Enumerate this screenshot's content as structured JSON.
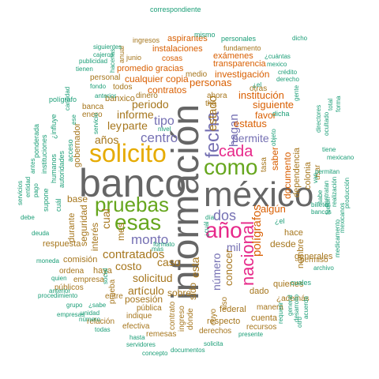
{
  "palette": {
    "teal": "#1b9e77",
    "orange": "#d95f02",
    "purple": "#7570b3",
    "magenta": "#e7298a",
    "green": "#66a61e",
    "gold": "#e6ab02",
    "brown": "#a6761d",
    "gray": "#666666"
  },
  "words": [
    {
      "text": "información",
      "color": "gray"
    },
    {
      "text": "banco",
      "color": "gray"
    },
    {
      "text": "méxico",
      "color": "gray"
    },
    {
      "text": "solicito",
      "color": "gold"
    },
    {
      "text": "pruebas",
      "color": "green"
    },
    {
      "text": "como",
      "color": "green"
    },
    {
      "text": "esas",
      "color": "green"
    },
    {
      "text": "año",
      "color": "magenta"
    },
    {
      "text": "cada",
      "color": "magenta"
    },
    {
      "text": "nacional",
      "color": "magenta"
    },
    {
      "text": "fecha",
      "color": "purple"
    },
    {
      "text": "dos",
      "color": "purple"
    },
    {
      "text": "monto",
      "color": "purple"
    },
    {
      "text": "centro",
      "color": "purple"
    },
    {
      "text": "tipo",
      "color": "purple"
    },
    {
      "text": "número",
      "color": "purple"
    },
    {
      "text": "permite",
      "color": "purple"
    },
    {
      "text": "hagan",
      "color": "purple"
    },
    {
      "text": "mil",
      "color": "purple"
    },
    {
      "text": "estado",
      "color": "brown"
    },
    {
      "text": "contratados",
      "color": "brown"
    },
    {
      "text": "solicitud",
      "color": "brown"
    },
    {
      "text": "periodo",
      "color": "brown"
    },
    {
      "text": "parte",
      "color": "brown"
    },
    {
      "text": "informe",
      "color": "brown"
    },
    {
      "text": "años",
      "color": "brown"
    },
    {
      "text": "ley",
      "color": "brown"
    },
    {
      "text": "cual",
      "color": "brown"
    },
    {
      "text": "caso",
      "color": "brown"
    },
    {
      "text": "costo",
      "color": "brown"
    },
    {
      "text": "artículo",
      "color": "brown"
    },
    {
      "text": "posesión",
      "color": "brown"
    },
    {
      "text": "sobre",
      "color": "brown"
    },
    {
      "text": "esta",
      "color": "brown"
    },
    {
      "text": "sido",
      "color": "brown"
    },
    {
      "text": "conocer",
      "color": "brown"
    },
    {
      "text": "desde",
      "color": "brown"
    },
    {
      "text": "algún",
      "color": "orange"
    },
    {
      "text": "polígrafos",
      "color": "orange"
    },
    {
      "text": "estatus",
      "color": "orange"
    },
    {
      "text": "documento",
      "color": "orange"
    },
    {
      "text": "saber",
      "color": "orange"
    },
    {
      "text": "favor",
      "color": "orange"
    },
    {
      "text": "siguiente",
      "color": "orange"
    },
    {
      "text": "institución",
      "color": "orange"
    },
    {
      "text": "personas",
      "color": "orange"
    },
    {
      "text": "investigación",
      "color": "orange"
    },
    {
      "text": "contratos",
      "color": "orange"
    },
    {
      "text": "cualquier copia",
      "color": "orange"
    },
    {
      "text": "promedio gracias",
      "color": "orange"
    },
    {
      "text": "instalaciones",
      "color": "orange"
    },
    {
      "text": "aspirantes",
      "color": "orange"
    },
    {
      "text": "transparencia",
      "color": "orange"
    },
    {
      "text": "exámenes",
      "color": "orange"
    },
    {
      "text": "cosas",
      "color": "orange"
    },
    {
      "text": "fundamento",
      "color": "brown"
    },
    {
      "text": "ingresos",
      "color": "brown"
    },
    {
      "text": "junio",
      "color": "brown"
    },
    {
      "text": "anual",
      "color": "brown"
    },
    {
      "text": "dinero",
      "color": "brown"
    },
    {
      "text": "banxico",
      "color": "brown"
    },
    {
      "text": "todos",
      "color": "brown"
    },
    {
      "text": "personal",
      "color": "brown"
    },
    {
      "text": "banca",
      "color": "brown"
    },
    {
      "text": "enero",
      "color": "brown"
    },
    {
      "text": "seguridad",
      "color": "brown"
    },
    {
      "text": "interés",
      "color": "brown"
    },
    {
      "text": "mes",
      "color": "brown"
    },
    {
      "text": "base",
      "color": "brown"
    },
    {
      "text": "durante",
      "color": "brown"
    },
    {
      "text": "haya",
      "color": "brown"
    },
    {
      "text": "comisión",
      "color": "brown"
    },
    {
      "text": "respuesta",
      "color": "brown"
    },
    {
      "text": "ordena",
      "color": "brown"
    },
    {
      "text": "públicos",
      "color": "brown"
    },
    {
      "text": "empresa",
      "color": "brown"
    },
    {
      "text": "entre",
      "color": "brown"
    },
    {
      "text": "relación",
      "color": "brown"
    },
    {
      "text": "indique",
      "color": "brown"
    },
    {
      "text": "pública",
      "color": "brown"
    },
    {
      "text": "remesas",
      "color": "brown"
    },
    {
      "text": "efectiva",
      "color": "brown"
    },
    {
      "text": "respecto",
      "color": "brown"
    },
    {
      "text": "derechos",
      "color": "brown"
    },
    {
      "text": "federal",
      "color": "brown"
    },
    {
      "text": "dado",
      "color": "brown"
    },
    {
      "text": "quienes",
      "color": "brown"
    },
    {
      "text": "manera",
      "color": "brown"
    },
    {
      "text": "cuenta",
      "color": "brown"
    },
    {
      "text": "recursos",
      "color": "brown"
    },
    {
      "text": "¿además",
      "color": "brown"
    },
    {
      "text": "nombre",
      "color": "brown"
    },
    {
      "text": "hace",
      "color": "brown"
    },
    {
      "text": "generales",
      "color": "brown"
    },
    {
      "text": "permiso",
      "color": "brown"
    },
    {
      "text": "gobernador",
      "color": "brown"
    },
    {
      "text": "ahora",
      "color": "brown"
    },
    {
      "text": "the",
      "color": "brown"
    },
    {
      "text": "otras",
      "color": "brown"
    },
    {
      "text": "dependencia",
      "color": "brown"
    },
    {
      "text": "colonia",
      "color": "brown"
    },
    {
      "text": "usar",
      "color": "brown"
    },
    {
      "text": "tasa",
      "color": "brown"
    },
    {
      "text": "medio",
      "color": "brown"
    },
    {
      "text": "contrato",
      "color": "brown"
    },
    {
      "text": "ingreso",
      "color": "brown"
    },
    {
      "text": "prueba",
      "color": "brown"
    },
    {
      "text": "dónde",
      "color": "brown"
    },
    {
      "text": "uso",
      "color": "brown"
    },
    {
      "text": "cuyo",
      "color": "brown"
    },
    {
      "text": "correspondiente",
      "color": "teal"
    },
    {
      "text": "mismo",
      "color": "teal"
    },
    {
      "text": "personales",
      "color": "teal"
    },
    {
      "text": "siguientes",
      "color": "teal"
    },
    {
      "text": "cajeros",
      "color": "teal"
    },
    {
      "text": "publicidad",
      "color": "teal"
    },
    {
      "text": "tienen",
      "color": "teal"
    },
    {
      "text": "hacerlas",
      "color": "teal"
    },
    {
      "text": "¿cuántas",
      "color": "teal"
    },
    {
      "text": "mexico",
      "color": "teal"
    },
    {
      "text": "crédito",
      "color": "teal"
    },
    {
      "text": "derecho",
      "color": "teal"
    },
    {
      "text": "gente",
      "color": "teal"
    },
    {
      "text": "polígrafo",
      "color": "teal"
    },
    {
      "text": "cantidad",
      "color": "teal"
    },
    {
      "text": "fondo",
      "color": "teal"
    },
    {
      "text": "anterior",
      "color": "teal"
    },
    {
      "text": "servicio",
      "color": "teal"
    },
    {
      "text": "¿influye",
      "color": "teal"
    },
    {
      "text": "ponderada",
      "color": "teal"
    },
    {
      "text": "instituciones",
      "color": "teal"
    },
    {
      "text": "humanos",
      "color": "teal"
    },
    {
      "text": "autoridades",
      "color": "teal"
    },
    {
      "text": "acceso",
      "color": "teal"
    },
    {
      "text": "servicios",
      "color": "teal"
    },
    {
      "text": "entidad",
      "color": "teal"
    },
    {
      "text": "pago",
      "color": "teal"
    },
    {
      "text": "supone",
      "color": "teal"
    },
    {
      "text": "cuál",
      "color": "teal"
    },
    {
      "text": "debe",
      "color": "teal"
    },
    {
      "text": "deuda",
      "color": "teal"
    },
    {
      "text": "moneda",
      "color": "teal"
    },
    {
      "text": "quien",
      "color": "teal"
    },
    {
      "text": "anterior",
      "color": "teal"
    },
    {
      "text": "procedimiento",
      "color": "teal"
    },
    {
      "text": "grupo",
      "color": "teal"
    },
    {
      "text": "¿sabe",
      "color": "teal"
    },
    {
      "text": "unidad",
      "color": "teal"
    },
    {
      "text": "número",
      "color": "teal"
    },
    {
      "text": "todas",
      "color": "teal"
    },
    {
      "text": "hasta",
      "color": "teal"
    },
    {
      "text": "servidores",
      "color": "teal"
    },
    {
      "text": "concepto",
      "color": "teal"
    },
    {
      "text": "documentos",
      "color": "teal"
    },
    {
      "text": "solicita",
      "color": "teal"
    },
    {
      "text": "presente",
      "color": "teal"
    },
    {
      "text": "acuerdo",
      "color": "teal"
    },
    {
      "text": "desarrollo",
      "color": "teal"
    },
    {
      "text": "archivo",
      "color": "teal"
    },
    {
      "text": "medicamento",
      "color": "teal"
    },
    {
      "text": "mexicanos",
      "color": "teal"
    },
    {
      "text": "producción",
      "color": "teal"
    },
    {
      "text": "mexicano",
      "color": "teal"
    },
    {
      "text": "tiene",
      "color": "teal"
    },
    {
      "text": "permitan",
      "color": "teal"
    },
    {
      "text": "billetes",
      "color": "teal"
    },
    {
      "text": "bancos",
      "color": "teal"
    },
    {
      "text": "ocultado",
      "color": "teal"
    },
    {
      "text": "directores",
      "color": "teal"
    },
    {
      "text": "total",
      "color": "teal"
    },
    {
      "text": "dicho",
      "color": "teal"
    },
    {
      "text": "forma",
      "color": "teal"
    },
    {
      "text": "nivel",
      "color": "teal"
    },
    {
      "text": "formato",
      "color": "teal"
    },
    {
      "text": "social",
      "color": "teal"
    },
    {
      "text": "día",
      "color": "teal"
    },
    {
      "text": "más",
      "color": "teal"
    },
    {
      "text": "cuales",
      "color": "teal"
    },
    {
      "text": "contratan",
      "color": "teal"
    },
    {
      "text": "realización",
      "color": "teal"
    },
    {
      "text": "sabe",
      "color": "teal"
    },
    {
      "text": "van",
      "color": "teal"
    },
    {
      "text": "general",
      "color": "teal"
    },
    {
      "text": "requerir",
      "color": "teal"
    },
    {
      "text": "otro",
      "color": "teal"
    },
    {
      "text": "¿el",
      "color": "teal"
    },
    {
      "text": "¿cuál",
      "color": "teal"
    },
    {
      "text": "objeto",
      "color": "teal"
    },
    {
      "text": "dicha",
      "color": "teal"
    },
    {
      "text": "¿el",
      "color": "teal"
    },
    {
      "text": "fueron",
      "color": "teal"
    },
    {
      "text": "ese",
      "color": "teal"
    },
    {
      "text": "antes",
      "color": "teal"
    },
    {
      "text": "empresas",
      "color": "teal"
    },
    {
      "text": "si",
      "color": "teal"
    },
    {
      "text": "ponderada",
      "color": "teal"
    }
  ]
}
